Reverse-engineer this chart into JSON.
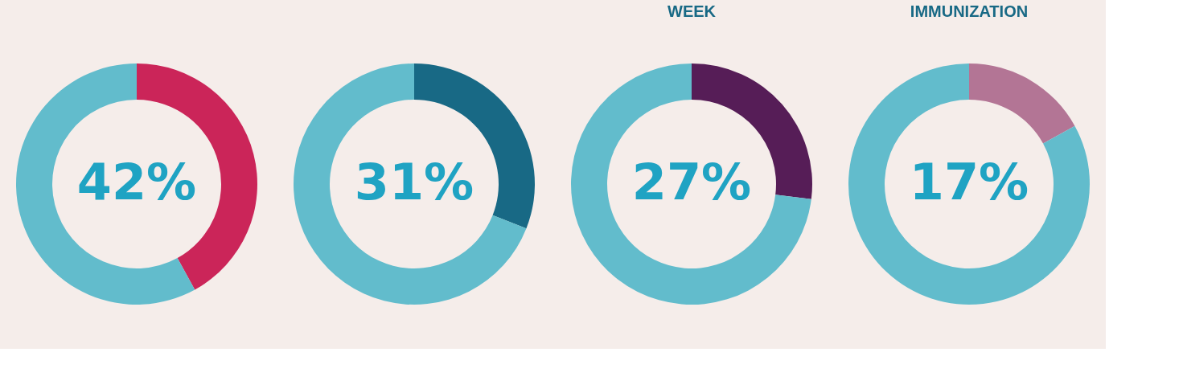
{
  "chart_data": [
    {
      "type": "donut",
      "categories": [
        null,
        null
      ],
      "values": [
        42,
        58
      ],
      "colors": [
        "#cb2559",
        "#62bccc"
      ],
      "annotations": [
        "42%"
      ]
    },
    {
      "type": "donut",
      "categories": [
        null,
        null
      ],
      "values": [
        31,
        69
      ],
      "colors": [
        "#186985",
        "#62bccc"
      ],
      "annotations": [
        "31%"
      ]
    },
    {
      "type": "donut",
      "title": "WEEK",
      "categories": [
        null,
        null
      ],
      "values": [
        27,
        73
      ],
      "colors": [
        "#561d57",
        "#62bccc"
      ],
      "annotations": [
        "27%"
      ]
    },
    {
      "type": "donut",
      "title": "IMMUNIZATION",
      "categories": [
        null,
        null
      ],
      "values": [
        17,
        83
      ],
      "colors": [
        "#b37595",
        "#62bccc"
      ],
      "annotations": [
        "17%"
      ]
    }
  ]
}
